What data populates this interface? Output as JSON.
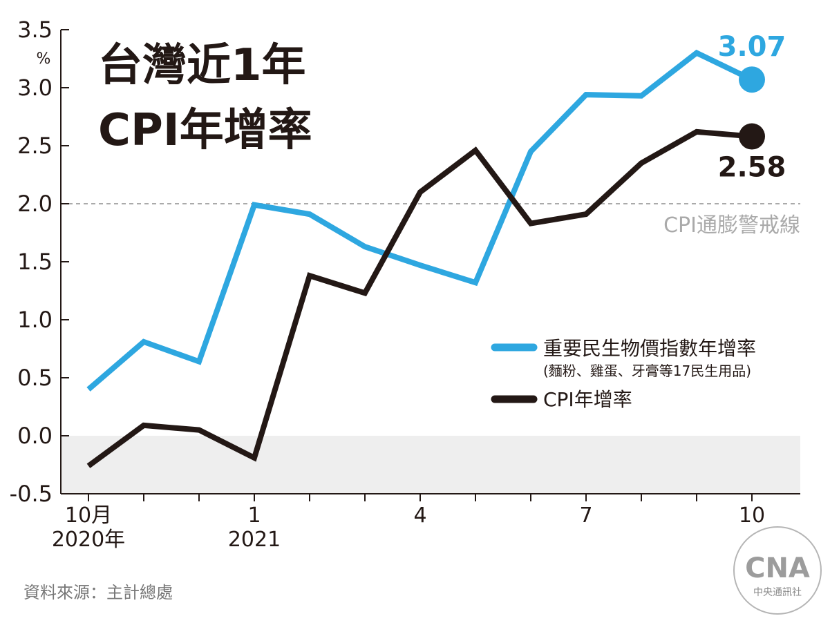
{
  "chart_data": {
    "type": "line",
    "title_lines": [
      "台灣近1年",
      "CPI年增率"
    ],
    "y_unit": "%",
    "ylim": [
      -0.5,
      3.5
    ],
    "y_ticks": [
      "3.5",
      "3.0",
      "2.5",
      "2.0",
      "1.5",
      "1.0",
      "0.5",
      "0.0",
      "-0.5"
    ],
    "y_tick_values": [
      3.5,
      3.0,
      2.5,
      2.0,
      1.5,
      1.0,
      0.5,
      0.0,
      -0.5
    ],
    "x_months": [
      "2020-10",
      "2020-11",
      "2020-12",
      "2021-01",
      "2021-02",
      "2021-03",
      "2021-04",
      "2021-05",
      "2021-06",
      "2021-07",
      "2021-08",
      "2021-09",
      "2021-10"
    ],
    "x_labels": [
      {
        "month_index": 0,
        "line1": "10月",
        "line2": "2020年"
      },
      {
        "month_index": 3,
        "line1": "1",
        "line2": "2021"
      },
      {
        "month_index": 6,
        "line1": "4",
        "line2": ""
      },
      {
        "month_index": 9,
        "line1": "7",
        "line2": ""
      },
      {
        "month_index": 12,
        "line1": "10",
        "line2": ""
      }
    ],
    "series": [
      {
        "name": "重要民生物價指數年增率",
        "sub_label": "(麵粉、雞蛋、牙膏等17民生用品)",
        "color": "#2ea7e0",
        "values": [
          0.4,
          0.81,
          0.64,
          1.99,
          1.91,
          1.63,
          1.47,
          1.32,
          2.45,
          2.94,
          2.93,
          3.3,
          3.07
        ],
        "end_label": "3.07"
      },
      {
        "name": "CPI年增率",
        "sub_label": "",
        "color": "#231815",
        "values": [
          -0.26,
          0.09,
          0.05,
          -0.19,
          1.38,
          1.23,
          2.1,
          2.46,
          1.83,
          1.91,
          2.35,
          2.62,
          2.58
        ],
        "end_label": "2.58"
      }
    ],
    "reference_line": {
      "value": 2.0,
      "label": "CPI通膨警戒線",
      "color": "#aaaaaa"
    },
    "negative_band_color": "#eeeeee",
    "source": "資料來源：主計總處",
    "logo": {
      "letters": "CNA",
      "caption": "中央通訊社"
    }
  }
}
